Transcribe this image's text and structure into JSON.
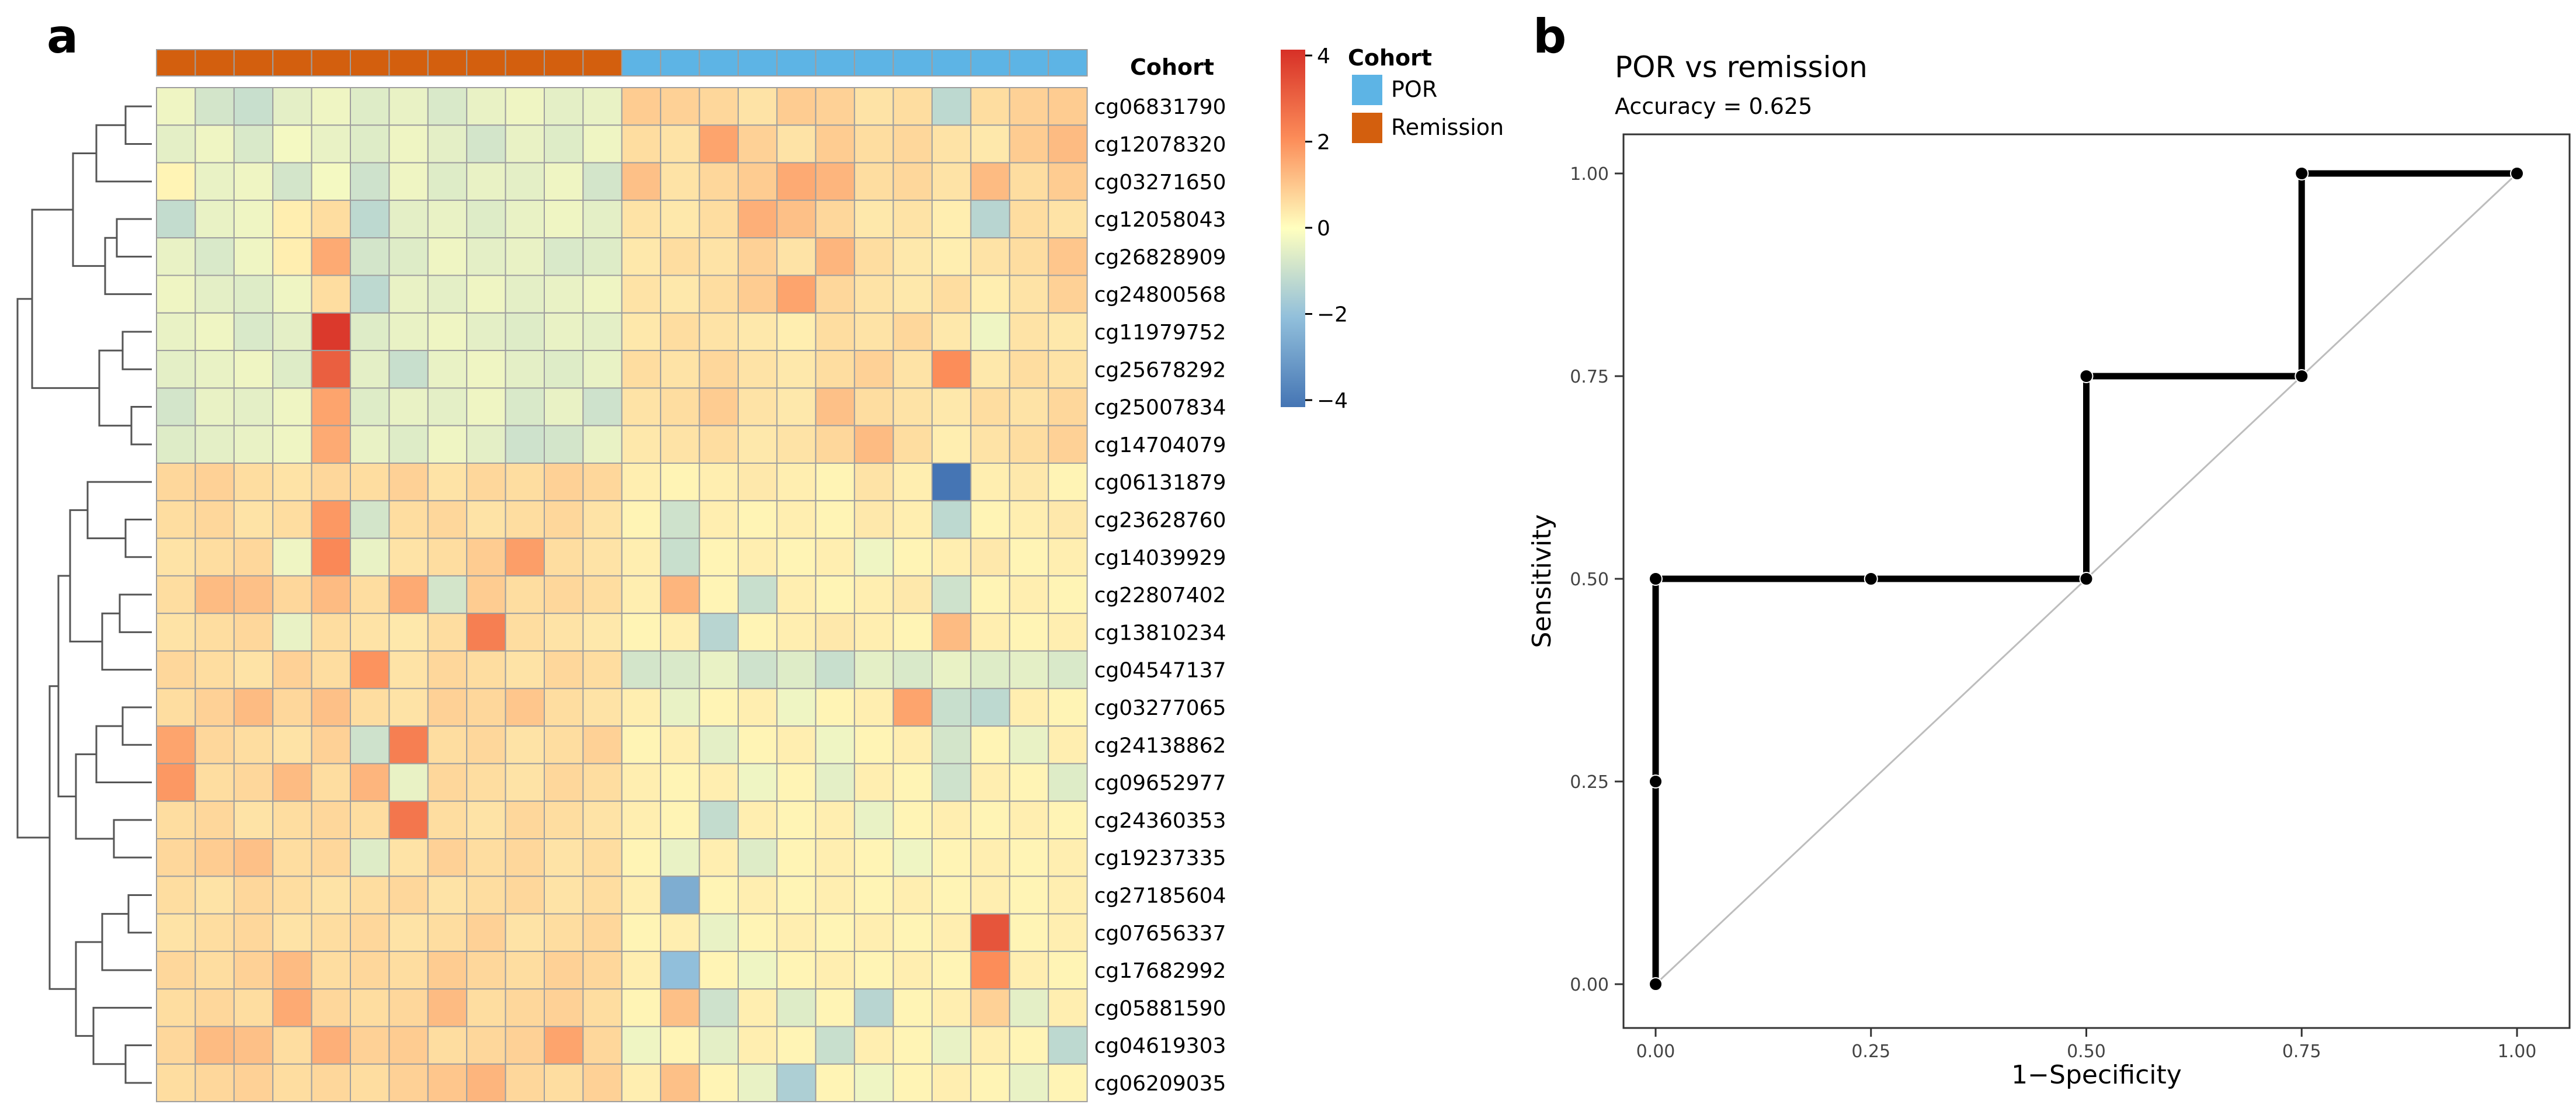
{
  "panels": {
    "a_label": "a",
    "b_label": "b"
  },
  "colors": {
    "por": "#5DB4E5",
    "remission": "#D35F0E",
    "scale_low": "#4575B4",
    "scale_mid": "#FFFFBF",
    "scale_high": "#D73027",
    "grid_line": "#9E9E9E",
    "dendrogram": "#555555",
    "roc_line": "#000000",
    "diagonal": "#BDBDBD"
  },
  "chart_data": [
    {
      "type": "heatmap",
      "annotation_title": "Cohort",
      "legend": {
        "title": "Cohort",
        "entries": [
          {
            "name": "POR",
            "color": "#5DB4E5"
          },
          {
            "name": "Remission",
            "color": "#D35F0E"
          }
        ]
      },
      "color_scale": {
        "ticks": [
          "4",
          "2",
          "0",
          "−2",
          "−4"
        ],
        "min": -4,
        "max": 4
      },
      "columns_cohort": [
        "Remission",
        "Remission",
        "Remission",
        "Remission",
        "Remission",
        "Remission",
        "Remission",
        "Remission",
        "Remission",
        "Remission",
        "Remission",
        "Remission",
        "POR",
        "POR",
        "POR",
        "POR",
        "POR",
        "POR",
        "POR",
        "POR",
        "POR",
        "POR",
        "POR",
        "POR"
      ],
      "rows": [
        "cg06831790",
        "cg12078320",
        "cg03271650",
        "cg12058043",
        "cg26828909",
        "cg24800568",
        "cg11979752",
        "cg25678292",
        "cg25007834",
        "cg14704079",
        "cg06131879",
        "cg23628760",
        "cg14039929",
        "cg22807402",
        "cg13810234",
        "cg04547137",
        "cg03277065",
        "cg24138862",
        "cg09652977",
        "cg24360353",
        "cg19237335",
        "cg27185604",
        "cg07656337",
        "cg17682992",
        "cg05881590",
        "cg04619303",
        "cg06209035"
      ],
      "values": [
        [
          -0.3,
          -0.8,
          -1.0,
          -0.5,
          -0.3,
          -0.6,
          -0.4,
          -0.7,
          -0.4,
          -0.3,
          -0.5,
          -0.4,
          0.9,
          0.8,
          0.7,
          0.5,
          0.9,
          0.8,
          0.5,
          0.6,
          -1.2,
          0.6,
          0.8,
          0.9
        ],
        [
          -0.5,
          -0.3,
          -0.7,
          -0.2,
          -0.4,
          -0.6,
          -0.3,
          -0.5,
          -0.8,
          -0.4,
          -0.6,
          -0.3,
          0.6,
          0.5,
          1.6,
          0.8,
          0.5,
          0.9,
          0.6,
          0.7,
          0.5,
          0.4,
          0.9,
          1.2
        ],
        [
          0.2,
          -0.4,
          -0.3,
          -0.8,
          -0.2,
          -0.9,
          -0.3,
          -0.6,
          -0.4,
          -0.5,
          -0.3,
          -0.8,
          1.1,
          0.5,
          0.7,
          0.9,
          1.5,
          1.3,
          0.6,
          0.7,
          0.5,
          1.2,
          0.6,
          0.9
        ],
        [
          -1.1,
          -0.4,
          -0.3,
          0.3,
          0.6,
          -1.2,
          -0.5,
          -0.4,
          -0.6,
          -0.4,
          -0.3,
          -0.5,
          0.5,
          0.4,
          0.6,
          1.4,
          1.1,
          0.7,
          0.4,
          0.5,
          0.3,
          -1.3,
          0.6,
          0.5
        ],
        [
          -0.4,
          -0.7,
          -0.3,
          0.3,
          1.5,
          -0.8,
          -0.6,
          -0.3,
          -0.5,
          -0.4,
          -0.7,
          -0.6,
          0.4,
          0.6,
          0.5,
          0.8,
          0.5,
          1.3,
          0.6,
          0.4,
          0.3,
          0.5,
          0.6,
          1.0
        ],
        [
          -0.3,
          -0.5,
          -0.6,
          -0.3,
          0.6,
          -1.2,
          -0.4,
          -0.5,
          -0.3,
          -0.5,
          -0.4,
          -0.3,
          0.5,
          0.4,
          0.6,
          0.9,
          1.6,
          0.7,
          0.5,
          0.4,
          0.6,
          0.3,
          0.5,
          0.8
        ],
        [
          -0.4,
          -0.3,
          -0.7,
          -0.5,
          3.8,
          -0.6,
          -0.4,
          -0.3,
          -0.5,
          -0.6,
          -0.4,
          -0.5,
          0.4,
          0.6,
          0.5,
          0.4,
          0.3,
          0.6,
          0.5,
          0.7,
          0.4,
          -0.3,
          0.5,
          0.4
        ],
        [
          -0.5,
          -0.4,
          -0.3,
          -0.6,
          3.0,
          -0.5,
          -1.0,
          -0.4,
          -0.3,
          -0.5,
          -0.6,
          -0.4,
          0.6,
          0.5,
          0.7,
          0.5,
          0.4,
          0.6,
          0.8,
          0.5,
          2.0,
          0.4,
          0.6,
          0.5
        ],
        [
          -0.8,
          -0.4,
          -0.5,
          -0.3,
          1.6,
          -0.6,
          -0.4,
          -0.5,
          -0.3,
          -0.7,
          -0.4,
          -0.9,
          0.5,
          0.6,
          0.9,
          0.5,
          0.4,
          1.1,
          0.6,
          0.5,
          0.4,
          0.6,
          0.5,
          0.7
        ],
        [
          -0.6,
          -0.5,
          -0.4,
          -0.3,
          1.5,
          -0.4,
          -0.6,
          -0.3,
          -0.5,
          -0.9,
          -0.8,
          -0.4,
          0.4,
          0.5,
          0.6,
          0.4,
          0.5,
          0.7,
          1.2,
          0.6,
          0.3,
          0.5,
          0.6,
          0.8
        ],
        [
          0.7,
          0.8,
          0.6,
          0.5,
          0.7,
          0.6,
          0.8,
          0.5,
          0.7,
          0.6,
          0.8,
          0.7,
          0.3,
          0.2,
          0.3,
          0.4,
          0.3,
          0.2,
          0.5,
          0.3,
          -4.0,
          0.3,
          0.4,
          0.2
        ],
        [
          0.6,
          0.7,
          0.5,
          0.6,
          1.8,
          -0.8,
          0.6,
          0.7,
          0.5,
          0.6,
          0.7,
          0.5,
          0.2,
          -0.9,
          0.3,
          0.2,
          0.3,
          0.2,
          0.4,
          0.3,
          -1.2,
          0.2,
          0.3,
          0.4
        ],
        [
          0.5,
          0.6,
          0.7,
          -0.3,
          2.1,
          -0.4,
          0.5,
          0.6,
          0.9,
          1.7,
          0.6,
          0.5,
          0.3,
          -1.0,
          0.2,
          0.3,
          0.2,
          0.3,
          -0.3,
          0.2,
          0.3,
          0.4,
          0.2,
          0.3
        ],
        [
          0.6,
          1.2,
          1.1,
          0.7,
          1.2,
          0.6,
          1.5,
          -0.8,
          0.9,
          0.6,
          0.7,
          0.6,
          0.3,
          1.3,
          0.2,
          -1.0,
          0.3,
          0.2,
          0.3,
          0.4,
          -0.9,
          0.2,
          0.3,
          0.2
        ],
        [
          0.5,
          0.6,
          0.7,
          -0.4,
          0.6,
          0.5,
          0.4,
          0.6,
          2.3,
          0.6,
          0.5,
          0.4,
          0.2,
          0.3,
          -1.3,
          0.2,
          0.3,
          0.4,
          0.3,
          0.2,
          1.2,
          0.3,
          0.2,
          0.3
        ],
        [
          0.7,
          0.6,
          0.5,
          0.8,
          0.6,
          1.9,
          0.5,
          0.7,
          0.6,
          0.5,
          0.7,
          0.6,
          -0.8,
          -0.7,
          -0.4,
          -0.9,
          -0.6,
          -1.0,
          -0.5,
          -0.7,
          -0.4,
          -0.6,
          -0.5,
          -0.7
        ],
        [
          0.6,
          0.8,
          1.2,
          0.7,
          1.1,
          0.6,
          0.5,
          0.8,
          0.7,
          1.0,
          0.6,
          0.5,
          0.3,
          -0.4,
          0.2,
          0.3,
          -0.3,
          0.2,
          0.3,
          1.6,
          -1.0,
          -1.2,
          0.3,
          0.2
        ],
        [
          1.6,
          0.7,
          0.6,
          0.5,
          0.8,
          -0.9,
          2.3,
          0.6,
          0.7,
          0.5,
          0.6,
          0.8,
          0.2,
          0.3,
          -0.5,
          0.2,
          0.3,
          -0.3,
          0.2,
          0.3,
          -0.8,
          0.2,
          -0.4,
          0.3
        ],
        [
          1.8,
          0.6,
          0.7,
          1.2,
          0.6,
          1.3,
          -0.4,
          0.7,
          0.6,
          0.5,
          0.7,
          0.6,
          0.3,
          0.2,
          0.3,
          -0.3,
          0.2,
          -0.5,
          0.3,
          0.2,
          -0.9,
          0.3,
          0.2,
          -0.6
        ],
        [
          0.6,
          0.7,
          0.5,
          0.6,
          0.7,
          0.6,
          2.5,
          0.6,
          0.5,
          0.7,
          0.6,
          0.5,
          0.3,
          0.2,
          -1.1,
          0.3,
          0.2,
          0.3,
          -0.4,
          0.2,
          0.3,
          0.2,
          0.3,
          0.2
        ],
        [
          0.7,
          0.9,
          1.1,
          0.6,
          0.7,
          -0.6,
          0.5,
          0.8,
          0.6,
          0.7,
          0.5,
          0.6,
          0.2,
          -0.4,
          0.3,
          -0.6,
          0.2,
          0.3,
          0.2,
          -0.3,
          0.2,
          0.3,
          0.2,
          0.3
        ],
        [
          0.6,
          0.5,
          0.7,
          0.6,
          0.5,
          0.6,
          0.7,
          0.5,
          0.6,
          0.7,
          0.5,
          0.6,
          0.3,
          -2.5,
          0.2,
          0.3,
          0.2,
          0.3,
          0.2,
          0.3,
          0.2,
          0.3,
          0.2,
          0.3
        ],
        [
          0.5,
          0.6,
          0.7,
          0.5,
          0.6,
          0.7,
          0.5,
          0.6,
          0.8,
          0.5,
          0.6,
          0.7,
          0.2,
          0.3,
          -0.4,
          0.2,
          0.3,
          0.2,
          0.3,
          0.2,
          0.3,
          3.2,
          0.2,
          0.3
        ],
        [
          0.7,
          0.6,
          0.8,
          1.2,
          0.6,
          0.7,
          0.6,
          0.9,
          0.7,
          0.6,
          0.8,
          0.7,
          0.3,
          -2.0,
          0.2,
          -0.3,
          0.2,
          0.3,
          0.2,
          0.3,
          0.2,
          2.0,
          0.3,
          0.2
        ],
        [
          0.6,
          0.7,
          0.6,
          1.5,
          0.7,
          0.6,
          0.7,
          1.2,
          0.6,
          0.7,
          0.8,
          0.6,
          0.2,
          1.1,
          -0.9,
          0.3,
          -0.6,
          0.2,
          -1.3,
          0.2,
          0.3,
          0.8,
          -0.5,
          0.3
        ],
        [
          0.7,
          1.2,
          1.1,
          0.6,
          1.4,
          0.8,
          0.9,
          0.6,
          0.7,
          0.8,
          1.6,
          0.7,
          -0.3,
          0.2,
          -0.5,
          0.3,
          0.2,
          -1.0,
          0.3,
          0.2,
          -0.4,
          0.3,
          0.2,
          -1.2
        ],
        [
          0.6,
          0.7,
          0.8,
          0.6,
          0.7,
          0.6,
          0.8,
          1.0,
          1.3,
          0.7,
          0.6,
          0.8,
          0.3,
          1.1,
          0.2,
          -0.4,
          -1.5,
          0.2,
          -0.3,
          0.2,
          0.3,
          0.2,
          -0.4,
          0.2
        ]
      ]
    },
    {
      "type": "line",
      "title": "POR vs remission",
      "subtitle": "Accuracy = 0.625",
      "xlabel": "1−Specificity",
      "ylabel": "Sensitivity",
      "xlim": [
        0,
        1
      ],
      "ylim": [
        0,
        1
      ],
      "xticks": [
        "0.00",
        "0.25",
        "0.50",
        "0.75",
        "1.00"
      ],
      "yticks": [
        "0.00",
        "0.25",
        "0.50",
        "0.75",
        "1.00"
      ],
      "series": [
        {
          "x": [
            0.0,
            0.0,
            0.0,
            0.25,
            0.5,
            0.5,
            0.75,
            0.75,
            1.0
          ],
          "y": [
            0.0,
            0.25,
            0.5,
            0.5,
            0.5,
            0.75,
            0.75,
            1.0,
            1.0
          ]
        }
      ],
      "reference_line": {
        "x": [
          0,
          1
        ],
        "y": [
          0,
          1
        ]
      }
    }
  ]
}
